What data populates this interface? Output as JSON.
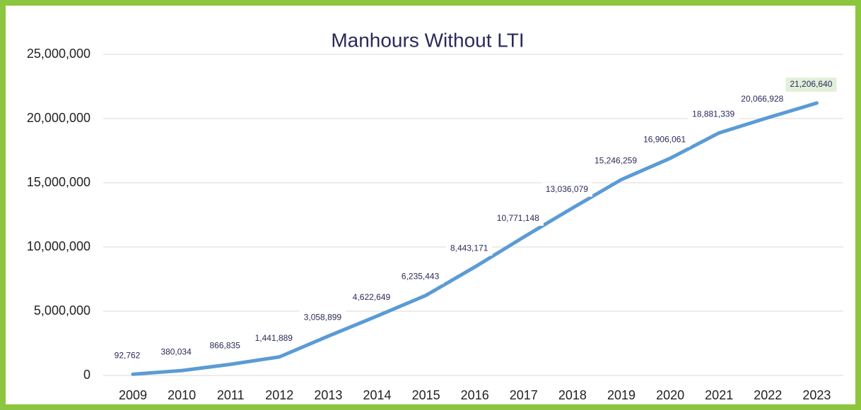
{
  "chart_data": {
    "type": "line",
    "title": "Manhours Without LTI",
    "categories": [
      "2009",
      "2010",
      "2011",
      "2012",
      "2013",
      "2014",
      "2015",
      "2016",
      "2017",
      "2018",
      "2019",
      "2020",
      "2021",
      "2022",
      "2023"
    ],
    "series": [
      {
        "name": "Manhours",
        "color": "#5b9bd5",
        "values": [
          92762,
          380034,
          866835,
          1441889,
          3058899,
          4622649,
          6235443,
          8443171,
          10771148,
          13036079,
          15246259,
          16906061,
          18881339,
          20066928,
          21206640
        ],
        "value_labels": [
          "92,762",
          "380,034",
          "866,835",
          "1,441,889",
          "3,058,899",
          "4,622,649",
          "6,235,443",
          "8,443,171",
          "10,771,148",
          "13,036,079",
          "15,246,259",
          "16,906,061",
          "18,881,339",
          "20,066,928",
          "21,206,640"
        ]
      }
    ],
    "ylim": [
      0,
      25000000
    ],
    "yticks": [
      0,
      {
        "value": 5000000,
        "label": "5,000,000"
      },
      {
        "value": 10000000,
        "label": "10,000,000"
      },
      {
        "value": 15000000,
        "label": "15,000,000"
      },
      {
        "value": 20000000,
        "label": "20,000,000"
      },
      {
        "value": 25000000,
        "label": "25,000,000"
      }
    ],
    "grid": true
  }
}
